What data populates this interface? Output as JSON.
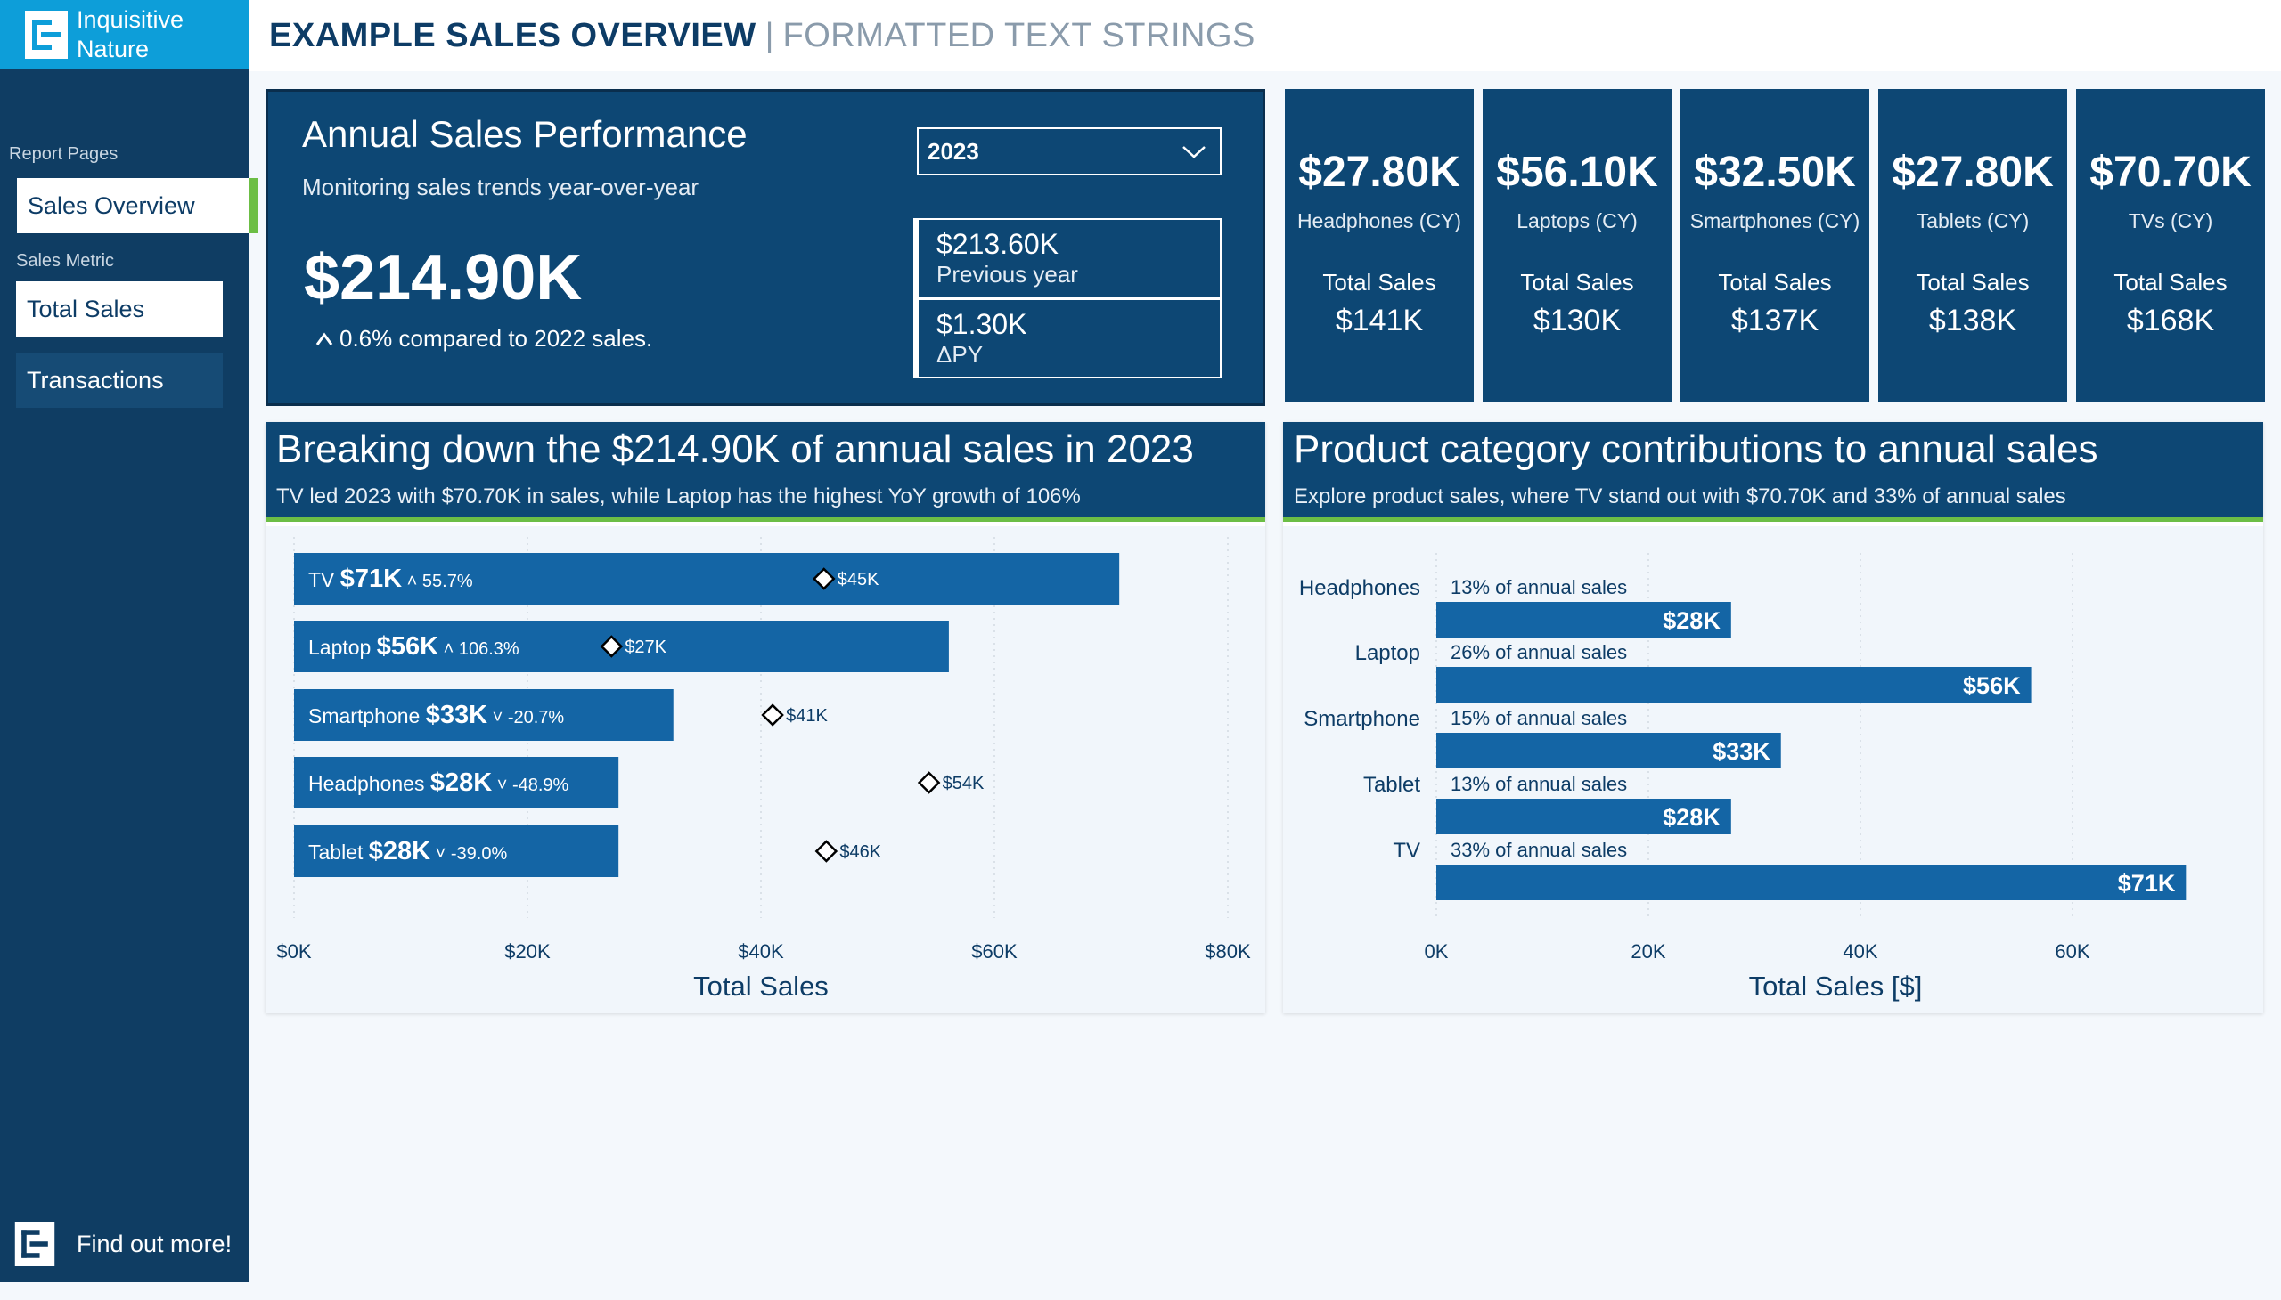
{
  "logo": {
    "line1": "Inquisitive",
    "line2": "Nature"
  },
  "sidebar": {
    "report_pages_label": "Report Pages",
    "pages": [
      {
        "label": "Sales Overview",
        "active": true
      },
      {
        "label": "Transactions",
        "active": false
      }
    ],
    "metric_label": "Sales Metric",
    "metric_value": "Total Sales",
    "find_more": "Find out more!"
  },
  "header": {
    "title": "EXAMPLE SALES OVERVIEW",
    "separator": "|",
    "subtitle": "FORMATTED TEXT STRINGS"
  },
  "annual": {
    "title": "Annual Sales Performance",
    "subtitle": "Monitoring sales trends year-over-year",
    "total": "$214.90K",
    "comparison": "0.6% compared to 2022 sales.",
    "year_selected": "2023",
    "previous_value": "$213.60K",
    "previous_label": "Previous year",
    "delta_value": "$1.30K",
    "delta_label": "ΔPY"
  },
  "kpis": [
    {
      "value": "$27.80K",
      "category": "Headphones (CY)",
      "total_label": "Total Sales",
      "total_value": "$141K"
    },
    {
      "value": "$56.10K",
      "category": "Laptops (CY)",
      "total_label": "Total Sales",
      "total_value": "$130K"
    },
    {
      "value": "$32.50K",
      "category": "Smartphones (CY)",
      "total_label": "Total Sales",
      "total_value": "$137K"
    },
    {
      "value": "$27.80K",
      "category": "Tablets (CY)",
      "total_label": "Total Sales",
      "total_value": "$138K"
    },
    {
      "value": "$70.70K",
      "category": "TVs (CY)",
      "total_label": "Total Sales",
      "total_value": "$168K"
    }
  ],
  "panel_left": {
    "title": "Breaking down the $214.90K of annual sales in 2023",
    "subtitle": "TV led 2023 with $70.70K in sales, while Laptop has the highest YoY growth of 106%"
  },
  "panel_right": {
    "title": "Product category contributions to annual sales",
    "subtitle": "Explore product sales, where TV stand out with $70.70K and 33% of annual sales"
  },
  "colors": {
    "navy": "#0d4774",
    "bar": "#1465a5",
    "accent": "#6cbe45",
    "header_blue": "#0d9ed9"
  },
  "chart_data": [
    {
      "type": "bar",
      "orientation": "horizontal",
      "xlabel": "Total Sales",
      "xlim": [
        0,
        80000
      ],
      "xticks": [
        "$0K",
        "$20K",
        "$40K",
        "$60K",
        "$80K"
      ],
      "xtick_values": [
        0,
        20000,
        40000,
        60000,
        80000
      ],
      "categories": [
        "TV",
        "Laptop",
        "Smartphone",
        "Headphones",
        "Tablet"
      ],
      "values": [
        70700,
        56100,
        32500,
        27800,
        27800
      ],
      "value_labels": [
        "$71K",
        "$56K",
        "$33K",
        "$28K",
        "$28K"
      ],
      "growth_labels": [
        "55.7%",
        "106.3%",
        "-20.7%",
        "-48.9%",
        "-39.0%"
      ],
      "growth_up": [
        true,
        true,
        false,
        false,
        false
      ],
      "previous_year": [
        45400,
        27200,
        41000,
        54400,
        45600
      ],
      "previous_year_labels": [
        "$45K",
        "$27K",
        "$41K",
        "$54K",
        "$46K"
      ]
    },
    {
      "type": "bar",
      "orientation": "horizontal",
      "xlabel": "Total Sales [$]",
      "xlim": [
        0,
        80000
      ],
      "xticks": [
        "0K",
        "20K",
        "40K",
        "60K"
      ],
      "xtick_values": [
        0,
        20000,
        40000,
        60000
      ],
      "categories": [
        "Headphones",
        "Laptop",
        "Smartphone",
        "Tablet",
        "TV"
      ],
      "values": [
        27800,
        56100,
        32500,
        27800,
        70700
      ],
      "value_labels": [
        "$28K",
        "$56K",
        "$33K",
        "$28K",
        "$71K"
      ],
      "share_labels": [
        "13% of annual sales",
        "26% of annual sales",
        "15% of annual sales",
        "13% of annual sales",
        "33% of annual sales"
      ]
    }
  ]
}
